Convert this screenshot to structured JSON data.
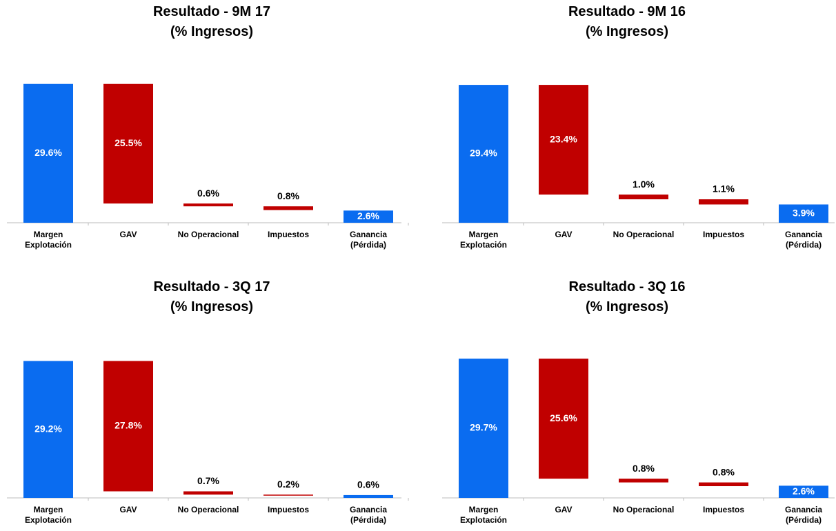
{
  "chart_data": [
    {
      "type": "waterfall",
      "title": "Resultado - 9M 17",
      "subtitle": "(% Ingresos)",
      "categories": [
        "Margen\nExplotación",
        "GAV",
        "No Operacional",
        "Impuestos",
        "Ganancia\n(Pérdida)"
      ],
      "measure": [
        "total",
        "decrease",
        "decrease",
        "decrease",
        "total"
      ],
      "values": [
        29.6,
        25.5,
        0.6,
        0.8,
        2.6
      ],
      "value_labels": [
        "29.6%",
        "25.5%",
        "0.6%",
        "0.8%",
        "2.6%"
      ],
      "colors": [
        "#0a6cf0",
        "#c00000",
        "#c00000",
        "#c00000",
        "#0a6cf0"
      ],
      "ylim": [
        0,
        30
      ]
    },
    {
      "type": "waterfall",
      "title": "Resultado - 9M 16",
      "subtitle": "(% Ingresos)",
      "categories": [
        "Margen\nExplotación",
        "GAV",
        "No Operacional",
        "Impuestos",
        "Ganancia\n(Pérdida)"
      ],
      "measure": [
        "total",
        "decrease",
        "decrease",
        "decrease",
        "total"
      ],
      "values": [
        29.4,
        23.4,
        1.0,
        1.1,
        3.9
      ],
      "value_labels": [
        "29.4%",
        "23.4%",
        "1.0%",
        "1.1%",
        "3.9%"
      ],
      "colors": [
        "#0a6cf0",
        "#c00000",
        "#c00000",
        "#c00000",
        "#0a6cf0"
      ],
      "ylim": [
        0,
        30
      ]
    },
    {
      "type": "waterfall",
      "title": "Resultado - 3Q 17",
      "subtitle": "(% Ingresos)",
      "categories": [
        "Margen\nExplotación",
        "GAV",
        "No Operacional",
        "Impuestos",
        "Ganancia\n(Pérdida)"
      ],
      "measure": [
        "total",
        "decrease",
        "decrease",
        "decrease",
        "total"
      ],
      "values": [
        29.2,
        27.8,
        0.7,
        0.2,
        0.6
      ],
      "value_labels": [
        "29.2%",
        "27.8%",
        "0.7%",
        "0.2%",
        "0.6%"
      ],
      "colors": [
        "#0a6cf0",
        "#c00000",
        "#c00000",
        "#c00000",
        "#0a6cf0"
      ],
      "ylim": [
        0,
        30
      ]
    },
    {
      "type": "waterfall",
      "title": "Resultado - 3Q 16",
      "subtitle": "(% Ingresos)",
      "categories": [
        "Margen\nExplotación",
        "GAV",
        "No Operacional",
        "Impuestos",
        "Ganancia\n(Pérdida)"
      ],
      "measure": [
        "total",
        "decrease",
        "decrease",
        "decrease",
        "total"
      ],
      "values": [
        29.7,
        25.6,
        0.8,
        0.8,
        2.6
      ],
      "value_labels": [
        "29.7%",
        "25.6%",
        "0.8%",
        "0.8%",
        "2.6%"
      ],
      "colors": [
        "#0a6cf0",
        "#c00000",
        "#c00000",
        "#c00000",
        "#0a6cf0"
      ],
      "ylim": [
        0,
        30
      ]
    }
  ]
}
